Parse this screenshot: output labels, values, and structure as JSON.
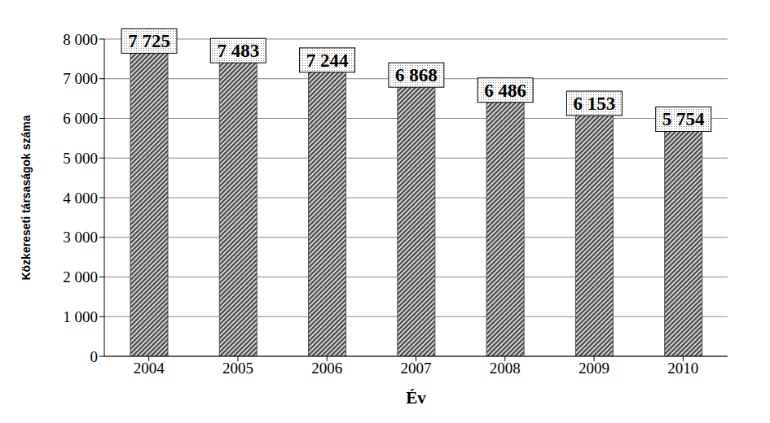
{
  "chart_data": {
    "type": "bar",
    "categories": [
      "2004",
      "2005",
      "2006",
      "2007",
      "2008",
      "2009",
      "2010"
    ],
    "values": [
      7725,
      7483,
      7244,
      6868,
      6486,
      6153,
      5754
    ],
    "value_labels": [
      "7 725",
      "7 483",
      "7 244",
      "6 868",
      "6 486",
      "6 153",
      "5 754"
    ],
    "color": "#4d4d4d",
    "x_label": "Év",
    "y_label": "Közkereseti társaságok száma",
    "ylim": [
      0,
      8000
    ],
    "yticks": [
      {
        "value": 0,
        "label": "0"
      },
      {
        "value": 1000,
        "label": "1 000"
      },
      {
        "value": 2000,
        "label": "2 000"
      },
      {
        "value": 3000,
        "label": "3 000"
      },
      {
        "value": 4000,
        "label": "4 000"
      },
      {
        "value": 5000,
        "label": "5 000"
      },
      {
        "value": 6000,
        "label": "6 000"
      },
      {
        "value": 7000,
        "label": "7 000"
      },
      {
        "value": 8000,
        "label": "8 000"
      }
    ],
    "grid": true,
    "data_labels": true
  }
}
